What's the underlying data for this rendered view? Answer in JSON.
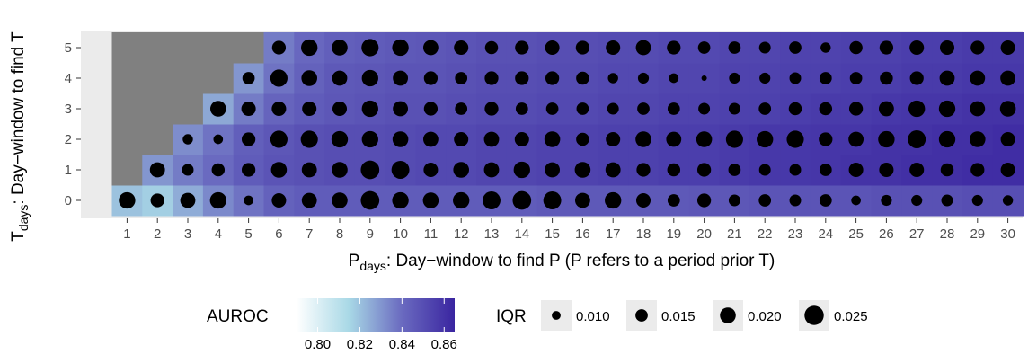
{
  "chart_data": {
    "type": "heatmap",
    "x_axis": {
      "title_main": "P",
      "title_subscript": "days",
      "title_rest": ": Day−window to find P (P refers to a period prior T)",
      "categories": [
        1,
        2,
        3,
        4,
        5,
        6,
        7,
        8,
        9,
        10,
        11,
        12,
        13,
        14,
        15,
        16,
        17,
        18,
        19,
        20,
        21,
        22,
        23,
        24,
        25,
        26,
        27,
        28,
        29,
        30
      ]
    },
    "y_axis": {
      "title_main": "T",
      "title_subscript": "days",
      "title_rest": ": Day−window to find T",
      "categories": [
        0,
        1,
        2,
        3,
        4,
        5
      ]
    },
    "missing_color": "#808080",
    "panel_background": "#ebebeb",
    "auroc_color_scale": {
      "title": "AUROC",
      "breaks": [
        "0.80",
        "0.82",
        "0.84",
        "0.86"
      ],
      "range": [
        0.79,
        0.865
      ],
      "colors": [
        "#ffffff",
        "#a8d8e6",
        "#6a6ac0",
        "#3a25a0"
      ]
    },
    "iqr_size_scale": {
      "title": "IQR",
      "breaks": [
        "0.010",
        "0.015",
        "0.020",
        "0.025"
      ],
      "range": [
        0.005,
        0.027
      ]
    },
    "auroc": [
      [
        0.82,
        0.817,
        0.825,
        0.833,
        0.838,
        0.843,
        0.845,
        0.845,
        0.845,
        0.845,
        0.845,
        0.845,
        0.845,
        0.845,
        0.846,
        0.846,
        0.846,
        0.846,
        0.846,
        0.847,
        0.847,
        0.848,
        0.848,
        0.848,
        0.848,
        0.849,
        0.849,
        0.849,
        0.85,
        0.85
      ],
      [
        null,
        0.83,
        0.836,
        0.84,
        0.845,
        0.848,
        0.849,
        0.85,
        0.85,
        0.851,
        0.852,
        0.852,
        0.853,
        0.853,
        0.854,
        0.854,
        0.855,
        0.855,
        0.856,
        0.856,
        0.857,
        0.858,
        0.858,
        0.859,
        0.86,
        0.86,
        0.861,
        0.861,
        0.862,
        0.862
      ],
      [
        null,
        null,
        0.832,
        0.838,
        0.844,
        0.847,
        0.849,
        0.85,
        0.85,
        0.851,
        0.852,
        0.852,
        0.853,
        0.853,
        0.854,
        0.854,
        0.855,
        0.855,
        0.856,
        0.856,
        0.857,
        0.858,
        0.858,
        0.859,
        0.859,
        0.86,
        0.86,
        0.861,
        0.861,
        0.862
      ],
      [
        null,
        null,
        null,
        0.826,
        0.836,
        0.842,
        0.845,
        0.847,
        0.848,
        0.849,
        0.849,
        0.85,
        0.851,
        0.851,
        0.852,
        0.852,
        0.853,
        0.853,
        0.854,
        0.854,
        0.855,
        0.855,
        0.856,
        0.857,
        0.857,
        0.858,
        0.859,
        0.859,
        0.86,
        0.86
      ],
      [
        null,
        null,
        null,
        null,
        0.83,
        0.838,
        0.843,
        0.846,
        0.847,
        0.848,
        0.848,
        0.849,
        0.85,
        0.85,
        0.851,
        0.851,
        0.852,
        0.852,
        0.853,
        0.853,
        0.854,
        0.854,
        0.855,
        0.855,
        0.856,
        0.856,
        0.857,
        0.857,
        0.858,
        0.858
      ],
      [
        null,
        null,
        null,
        null,
        null,
        0.836,
        0.841,
        0.844,
        0.845,
        0.846,
        0.847,
        0.848,
        0.849,
        0.849,
        0.85,
        0.85,
        0.851,
        0.851,
        0.852,
        0.852,
        0.853,
        0.853,
        0.854,
        0.854,
        0.855,
        0.855,
        0.856,
        0.856,
        0.857,
        0.857
      ]
    ],
    "iqr": [
      [
        0.021,
        0.017,
        0.019,
        0.021,
        0.011,
        0.018,
        0.019,
        0.02,
        0.024,
        0.021,
        0.02,
        0.021,
        0.023,
        0.024,
        0.023,
        0.019,
        0.021,
        0.018,
        0.015,
        0.017,
        0.014,
        0.015,
        0.014,
        0.015,
        0.011,
        0.013,
        0.013,
        0.014,
        0.013,
        0.012
      ],
      [
        null,
        0.019,
        0.014,
        0.016,
        0.017,
        0.02,
        0.019,
        0.02,
        0.024,
        0.023,
        0.018,
        0.02,
        0.019,
        0.021,
        0.019,
        0.02,
        0.019,
        0.017,
        0.016,
        0.017,
        0.015,
        0.014,
        0.014,
        0.015,
        0.018,
        0.018,
        0.018,
        0.016,
        0.017,
        0.018
      ],
      [
        null,
        null,
        0.012,
        0.011,
        0.017,
        0.022,
        0.022,
        0.021,
        0.021,
        0.02,
        0.019,
        0.018,
        0.019,
        0.018,
        0.02,
        0.016,
        0.018,
        0.02,
        0.019,
        0.02,
        0.022,
        0.021,
        0.022,
        0.017,
        0.019,
        0.021,
        0.023,
        0.021,
        0.02,
        0.018
      ],
      [
        null,
        null,
        null,
        0.02,
        0.018,
        0.018,
        0.018,
        0.018,
        0.021,
        0.019,
        0.017,
        0.015,
        0.017,
        0.015,
        0.015,
        0.015,
        0.014,
        0.015,
        0.015,
        0.014,
        0.014,
        0.015,
        0.016,
        0.016,
        0.017,
        0.019,
        0.021,
        0.021,
        0.019,
        0.02
      ],
      [
        null,
        null,
        null,
        null,
        0.015,
        0.022,
        0.02,
        0.019,
        0.021,
        0.019,
        0.017,
        0.015,
        0.017,
        0.017,
        0.017,
        0.016,
        0.012,
        0.013,
        0.011,
        0.005,
        0.013,
        0.013,
        0.014,
        0.015,
        0.015,
        0.016,
        0.017,
        0.019,
        0.019,
        0.019
      ],
      [
        null,
        null,
        null,
        null,
        null,
        0.017,
        0.021,
        0.02,
        0.022,
        0.021,
        0.019,
        0.018,
        0.016,
        0.017,
        0.018,
        0.017,
        0.018,
        0.019,
        0.017,
        0.015,
        0.015,
        0.014,
        0.015,
        0.012,
        0.016,
        0.017,
        0.018,
        0.018,
        0.017,
        0.018
      ]
    ]
  }
}
